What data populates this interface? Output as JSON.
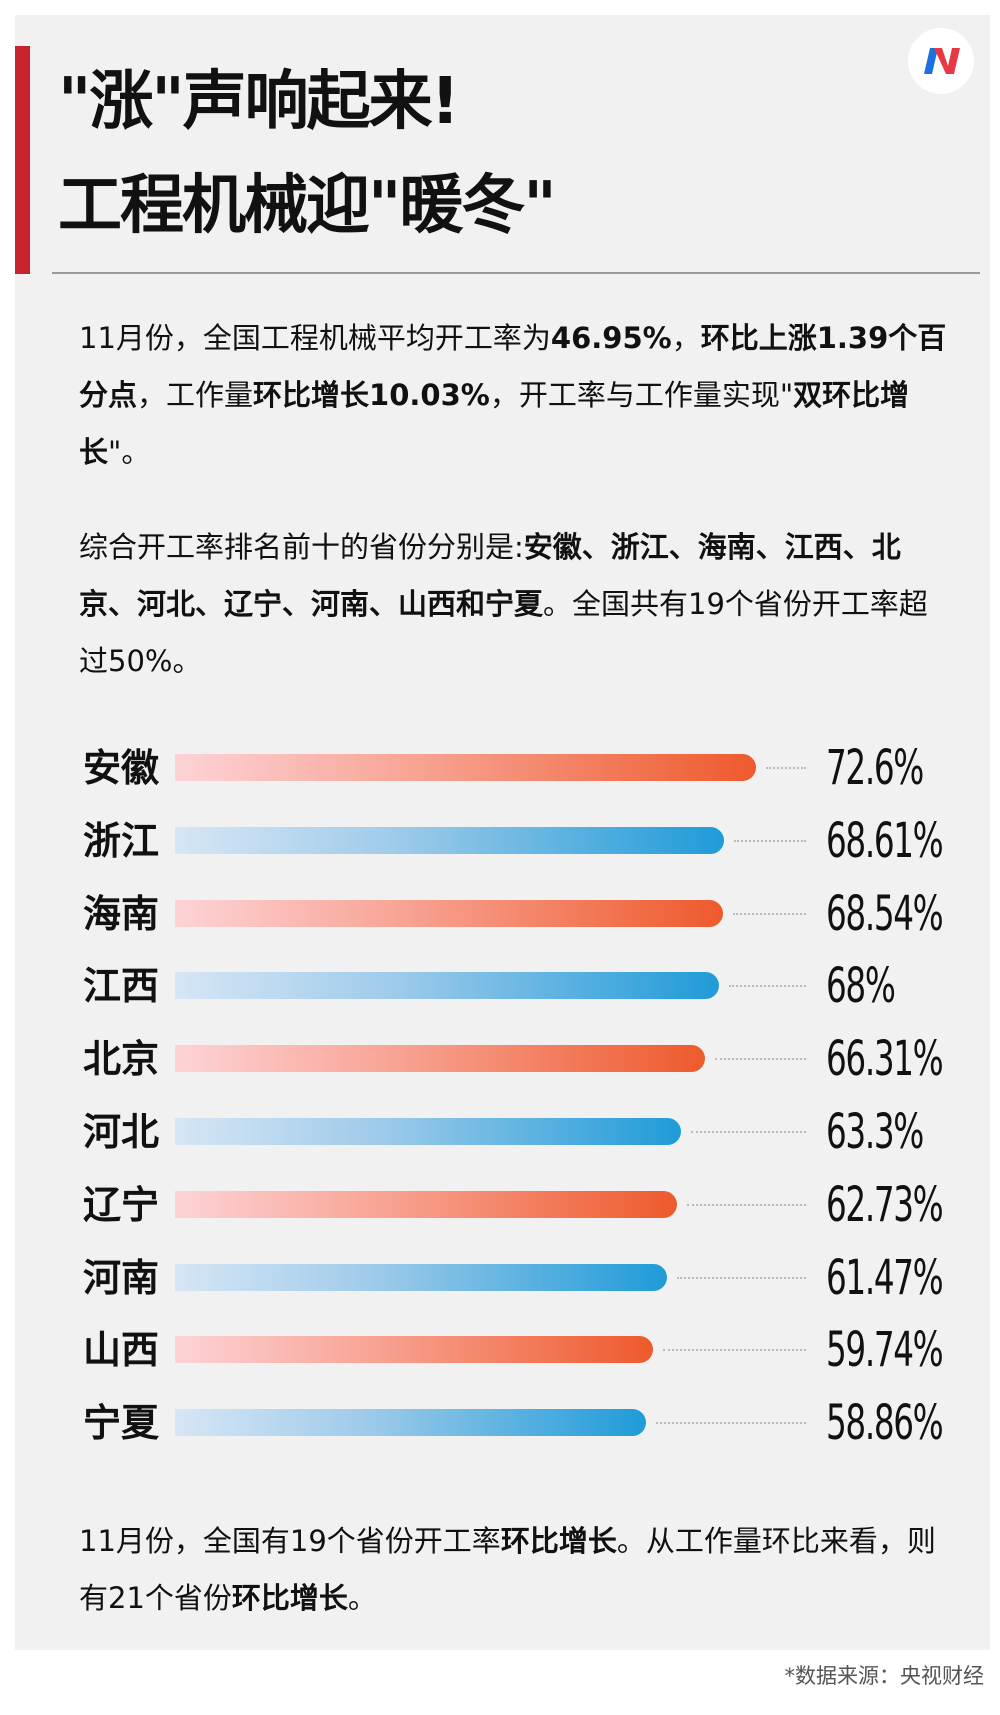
{
  "title_lines": [
    "\"涨\"声响起来!",
    "工程机械迎\"暖冬\""
  ],
  "logo": {
    "icon": "n-logo-icon",
    "colors": [
      "#1e6fe0",
      "#e63946"
    ]
  },
  "paragraphs": [
    [
      {
        "t": "11月份，全国工程机械平均开工率为",
        "b": false
      },
      {
        "t": "46.95%",
        "b": true
      },
      {
        "t": "，",
        "b": false
      },
      {
        "t": "环比上涨1.39个百分点",
        "b": true
      },
      {
        "t": "，工作量",
        "b": false
      },
      {
        "t": "环比增长10.03%",
        "b": true
      },
      {
        "t": "，开工率与工作量实现\"",
        "b": false
      },
      {
        "t": "双环比增长",
        "b": true
      },
      {
        "t": "\"。",
        "b": false
      }
    ],
    [
      {
        "t": "综合开工率排名前十的省份分别是:",
        "b": false
      },
      {
        "t": "安徽、浙江、海南、江西、北京、河北、辽宁、河南、山西和宁夏",
        "b": true
      },
      {
        "t": "。全国共有19个省份开工率超过50%。",
        "b": false
      }
    ],
    [
      {
        "t": "11月份，全国有19个省份开工率",
        "b": false
      },
      {
        "t": "环比增长",
        "b": true
      },
      {
        "t": "。从工作量环比来看，则有21个省份",
        "b": false
      },
      {
        "t": "环比增长",
        "b": true
      },
      {
        "t": "。",
        "b": false
      }
    ]
  ],
  "chart_data": {
    "type": "bar",
    "orientation": "horizontal",
    "categories": [
      "安徽",
      "浙江",
      "海南",
      "江西",
      "北京",
      "河北",
      "辽宁",
      "河南",
      "山西",
      "宁夏"
    ],
    "values": [
      72.6,
      68.61,
      68.54,
      68,
      66.31,
      63.3,
      62.73,
      61.47,
      59.74,
      58.86
    ],
    "value_labels": [
      "72.6%",
      "68.61%",
      "68.54%",
      "68%",
      "66.31%",
      "63.3%",
      "62.73%",
      "61.47%",
      "59.74%",
      "58.86%"
    ],
    "unit": "%",
    "colors": [
      "#ee5a2c",
      "#1f9bd8"
    ],
    "grid": false
  },
  "source": "*数据来源：央视财经"
}
